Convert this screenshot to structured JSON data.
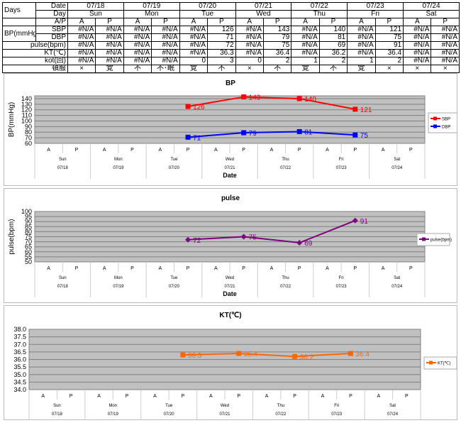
{
  "table": {
    "days_label": "Days",
    "date_label": "Date",
    "day_label": "Day",
    "ap_label": "A/P",
    "dates": [
      "07/18",
      "07/19",
      "07/20",
      "07/21",
      "07/22",
      "07/23",
      "07/24"
    ],
    "days": [
      "Sun",
      "Mon",
      "Tue",
      "Wed",
      "Thu",
      "Fri",
      "Sat"
    ],
    "ap": [
      "A",
      "P",
      "A",
      "P",
      "A",
      "P",
      "A",
      "P",
      "A",
      "P",
      "A",
      "P",
      "A",
      "P"
    ],
    "bp_label": "BP(mmHg)",
    "rows": [
      {
        "label": "SBP",
        "values": [
          "#N/A",
          "#N/A",
          "#N/A",
          "#N/A",
          "#N/A",
          "126",
          "#N/A",
          "143",
          "#N/A",
          "140",
          "#N/A",
          "121",
          "#N/A",
          "#N/A"
        ]
      },
      {
        "label": "DBP",
        "values": [
          "#N/A",
          "#N/A",
          "#N/A",
          "#N/A",
          "#N/A",
          "71",
          "#N/A",
          "79",
          "#N/A",
          "81",
          "#N/A",
          "75",
          "#N/A",
          "#N/A"
        ]
      },
      {
        "label": "pulse(bpm)",
        "values": [
          "#N/A",
          "#N/A",
          "#N/A",
          "#N/A",
          "#N/A",
          "72",
          "#N/A",
          "75",
          "#N/A",
          "69",
          "#N/A",
          "91",
          "#N/A",
          "#N/A"
        ]
      },
      {
        "label": "KT(℃)",
        "values": [
          "#N/A",
          "#N/A",
          "#N/A",
          "#N/A",
          "#N/A",
          "36.3",
          "#N/A",
          "36.4",
          "#N/A",
          "36.2",
          "#N/A",
          "36.4",
          "#N/A",
          "#N/A"
        ]
      },
      {
        "label": "kot(回)",
        "values": [
          "#N/A",
          "#N/A",
          "#N/A",
          "#N/A",
          "0",
          "3",
          "0",
          "2",
          "1",
          "2",
          "1",
          "2",
          "#N/A",
          "#N/A"
        ]
      },
      {
        "label": "頓服",
        "values": [
          "×",
          "覚",
          "不",
          "不･眠",
          "覚",
          "不",
          "×",
          "不",
          "覚",
          "不",
          "覚",
          "×",
          "×",
          "×"
        ]
      }
    ]
  },
  "chart_data": [
    {
      "type": "line",
      "title": "BP",
      "xlabel": "Date",
      "ylabel": "BP(mmHg)",
      "ylim": [
        60,
        145
      ],
      "yticks": [
        60,
        70,
        80,
        90,
        100,
        110,
        120,
        130,
        140
      ],
      "grid": true,
      "legend": "right",
      "categories_ap": [
        "A",
        "P",
        "A",
        "P",
        "A",
        "P",
        "A",
        "P",
        "A",
        "P",
        "A",
        "P",
        "A",
        "P"
      ],
      "categories_day": [
        "Sun",
        "Mon",
        "Tue",
        "Wed",
        "Thu",
        "Fri",
        "Sat"
      ],
      "categories_date": [
        "07/18",
        "07/19",
        "07/20",
        "07/21",
        "07/22",
        "07/23",
        "07/24"
      ],
      "series": [
        {
          "name": "SBP",
          "color": "#ff0000",
          "values": [
            null,
            null,
            null,
            null,
            null,
            126,
            null,
            143,
            null,
            140,
            null,
            121,
            null,
            null
          ]
        },
        {
          "name": "DBP",
          "color": "#0000ff",
          "values": [
            null,
            null,
            null,
            null,
            null,
            71,
            null,
            79,
            null,
            81,
            null,
            75,
            null,
            null
          ]
        }
      ]
    },
    {
      "type": "line",
      "title": "pulse",
      "xlabel": "Date",
      "ylabel": "pulse(bpm)",
      "ylim": [
        50,
        100
      ],
      "yticks": [
        50,
        55,
        60,
        65,
        70,
        75,
        80,
        85,
        90,
        95,
        100
      ],
      "grid": true,
      "legend": "right",
      "categories_ap": [
        "A",
        "P",
        "A",
        "P",
        "A",
        "P",
        "A",
        "P",
        "A",
        "P",
        "A",
        "P",
        "A",
        "P"
      ],
      "categories_day": [
        "Sun",
        "Mon",
        "Tue",
        "Wed",
        "Thu",
        "Fri",
        "Sat"
      ],
      "categories_date": [
        "07/18",
        "07/19",
        "07/20",
        "07/21",
        "07/22",
        "07/23",
        "07/24"
      ],
      "series": [
        {
          "name": "pulse(bpm)",
          "color": "#800080",
          "marker": "diamond",
          "values": [
            null,
            null,
            null,
            null,
            null,
            72,
            null,
            75,
            null,
            69,
            null,
            91,
            null,
            null
          ]
        }
      ]
    },
    {
      "type": "line",
      "title": "KT(℃)",
      "xlabel": "",
      "ylabel": "",
      "ylim": [
        34,
        38
      ],
      "yticks": [
        "34.0",
        "34.5",
        "35.0",
        "35.5",
        "36.0",
        "36.5",
        "37.0",
        "37.5",
        "38.0"
      ],
      "grid": true,
      "legend": "right",
      "categories_ap": [
        "A",
        "P",
        "A",
        "P",
        "A",
        "P",
        "A",
        "P",
        "A",
        "P",
        "A",
        "P",
        "A",
        "P"
      ],
      "categories_day": [
        "Sun",
        "Mon",
        "Tue",
        "Wed",
        "Thu",
        "Fri",
        "Sat"
      ],
      "categories_date": [
        "07/18",
        "07/19",
        "07/20",
        "07/21",
        "07/22",
        "07/23",
        "07/24"
      ],
      "series": [
        {
          "name": "KT(℃)",
          "color": "#ff6600",
          "values": [
            null,
            null,
            null,
            null,
            null,
            36.3,
            null,
            36.4,
            null,
            36.2,
            null,
            36.4,
            null,
            null
          ]
        }
      ]
    }
  ]
}
